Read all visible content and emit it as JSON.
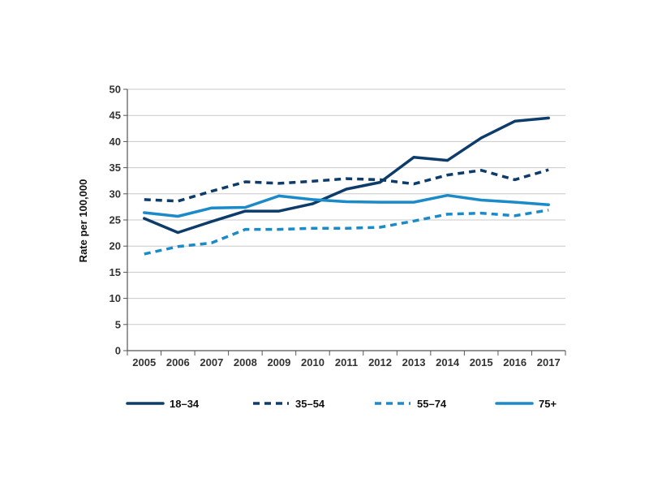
{
  "chart_data": {
    "type": "line",
    "title": "",
    "xlabel": "",
    "ylabel": "Rate per 100,000",
    "ylim": [
      0,
      50
    ],
    "yticks": [
      0,
      5,
      10,
      15,
      20,
      25,
      30,
      35,
      40,
      45,
      50
    ],
    "grid": true,
    "legend_position": "bottom",
    "categories": [
      "2005",
      "2006",
      "2007",
      "2008",
      "2009",
      "2010",
      "2011",
      "2012",
      "2013",
      "2014",
      "2015",
      "2016",
      "2017"
    ],
    "series": [
      {
        "name": "18–34",
        "color": "#0d3c6b",
        "dashed": false,
        "values": [
          25.3,
          22.6,
          24.7,
          26.7,
          26.7,
          28.1,
          30.9,
          32.2,
          37.0,
          36.4,
          40.7,
          43.9,
          44.5
        ]
      },
      {
        "name": "35–54",
        "color": "#0d3c6b",
        "dashed": true,
        "values": [
          28.9,
          28.6,
          30.5,
          32.3,
          32.0,
          32.4,
          32.9,
          32.7,
          31.9,
          33.6,
          34.5,
          32.7,
          34.6
        ]
      },
      {
        "name": "55–74",
        "color": "#1b8ac8",
        "dashed": true,
        "values": [
          18.5,
          19.9,
          20.6,
          23.2,
          23.2,
          23.4,
          23.4,
          23.6,
          24.8,
          26.1,
          26.3,
          25.8,
          26.9
        ]
      },
      {
        "name": "75+",
        "color": "#1b8ac8",
        "dashed": false,
        "values": [
          26.4,
          25.7,
          27.3,
          27.4,
          29.6,
          28.9,
          28.5,
          28.4,
          28.4,
          29.7,
          28.8,
          28.4,
          27.9
        ]
      }
    ]
  }
}
